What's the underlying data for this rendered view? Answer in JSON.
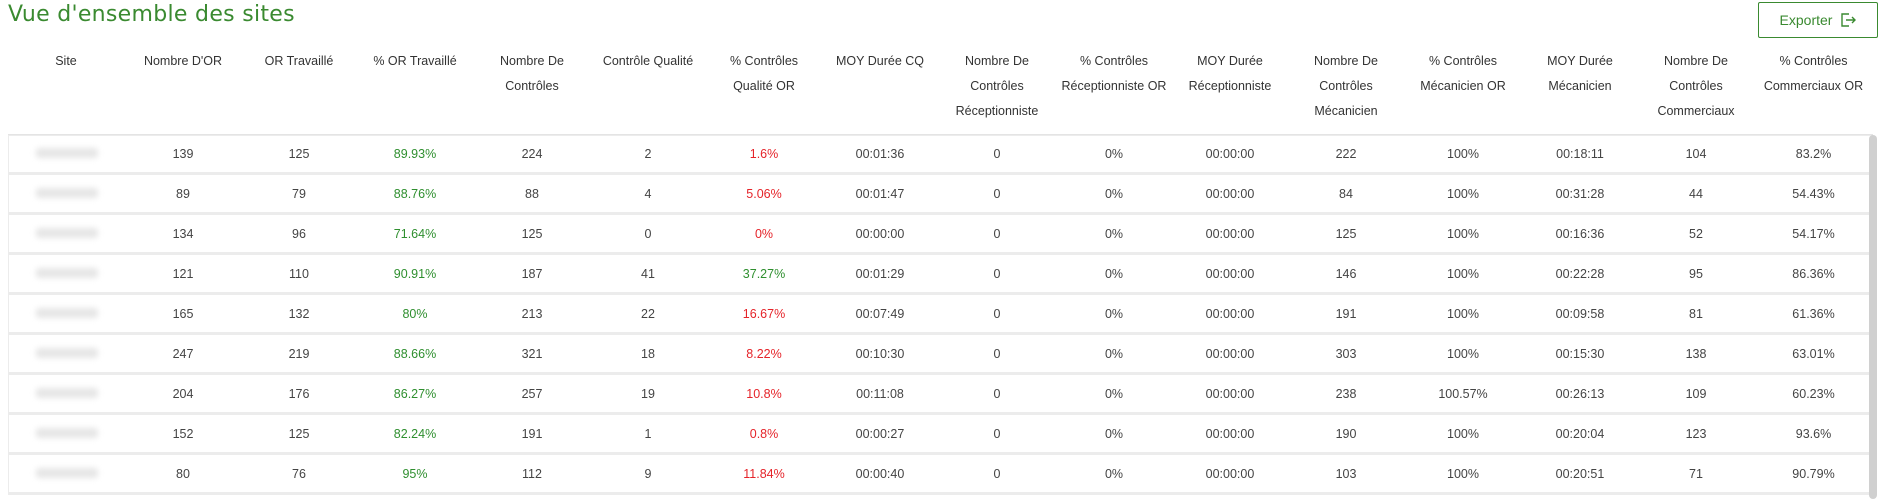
{
  "header": {
    "title": "Vue d'ensemble des sites",
    "export_label": "Exporter",
    "export_icon": "export-icon",
    "accent_color": "#3a8a30"
  },
  "table": {
    "columns": [
      "Site",
      "Nombre D'OR",
      "OR Travaillé",
      "% OR Travaillé",
      "Nombre De Contrôles",
      "Contrôle Qualité",
      "% Contrôles Qualité OR",
      "MOY Durée CQ",
      "Nombre De Contrôles Réceptionniste",
      "% Contrôles Réceptionniste OR",
      "MOY Durée Réceptionniste",
      "Nombre De Contrôles Mécanicien",
      "% Contrôles Mécanicien OR",
      "MOY Durée Mécanicien",
      "Nombre De Contrôles Commerciaux",
      "% Contrôles Commerciaux OR"
    ],
    "status_colors": {
      "good": "#2f8f2f",
      "bad": "#e5242a"
    },
    "rows": [
      {
        "values": [
          "",
          "139",
          "125",
          "89.93%",
          "224",
          "2",
          "1.6%",
          "00:01:36",
          "0",
          "0%",
          "00:00:00",
          "222",
          "100%",
          "00:18:11",
          "104",
          "83.2%"
        ],
        "pct_or_status": "good",
        "pct_cq_status": "bad"
      },
      {
        "values": [
          "",
          "89",
          "79",
          "88.76%",
          "88",
          "4",
          "5.06%",
          "00:01:47",
          "0",
          "0%",
          "00:00:00",
          "84",
          "100%",
          "00:31:28",
          "44",
          "54.43%"
        ],
        "pct_or_status": "good",
        "pct_cq_status": "bad"
      },
      {
        "values": [
          "",
          "134",
          "96",
          "71.64%",
          "125",
          "0",
          "0%",
          "00:00:00",
          "0",
          "0%",
          "00:00:00",
          "125",
          "100%",
          "00:16:36",
          "52",
          "54.17%"
        ],
        "pct_or_status": "good",
        "pct_cq_status": "bad"
      },
      {
        "values": [
          "",
          "121",
          "110",
          "90.91%",
          "187",
          "41",
          "37.27%",
          "00:01:29",
          "0",
          "0%",
          "00:00:00",
          "146",
          "100%",
          "00:22:28",
          "95",
          "86.36%"
        ],
        "pct_or_status": "good",
        "pct_cq_status": "good"
      },
      {
        "values": [
          "",
          "165",
          "132",
          "80%",
          "213",
          "22",
          "16.67%",
          "00:07:49",
          "0",
          "0%",
          "00:00:00",
          "191",
          "100%",
          "00:09:58",
          "81",
          "61.36%"
        ],
        "pct_or_status": "good",
        "pct_cq_status": "bad"
      },
      {
        "values": [
          "",
          "247",
          "219",
          "88.66%",
          "321",
          "18",
          "8.22%",
          "00:10:30",
          "0",
          "0%",
          "00:00:00",
          "303",
          "100%",
          "00:15:30",
          "138",
          "63.01%"
        ],
        "pct_or_status": "good",
        "pct_cq_status": "bad"
      },
      {
        "values": [
          "",
          "204",
          "176",
          "86.27%",
          "257",
          "19",
          "10.8%",
          "00:11:08",
          "0",
          "0%",
          "00:00:00",
          "238",
          "100.57%",
          "00:26:13",
          "109",
          "60.23%"
        ],
        "pct_or_status": "good",
        "pct_cq_status": "bad"
      },
      {
        "values": [
          "",
          "152",
          "125",
          "82.24%",
          "191",
          "1",
          "0.8%",
          "00:00:27",
          "0",
          "0%",
          "00:00:00",
          "190",
          "100%",
          "00:20:04",
          "123",
          "93.6%"
        ],
        "pct_or_status": "good",
        "pct_cq_status": "bad"
      },
      {
        "values": [
          "",
          "80",
          "76",
          "95%",
          "112",
          "9",
          "11.84%",
          "00:00:40",
          "0",
          "0%",
          "00:00:00",
          "103",
          "100%",
          "00:20:51",
          "71",
          "90.79%"
        ],
        "pct_or_status": "good",
        "pct_cq_status": "bad"
      }
    ]
  }
}
